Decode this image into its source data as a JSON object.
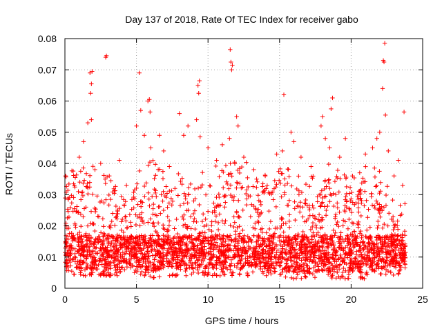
{
  "chart_data": {
    "type": "scatter",
    "title": "Day 137 of 2018, Rate Of TEC Index for receiver gabo",
    "xlabel": "GPS time / hours",
    "ylabel": "ROTI / TECUs",
    "xlim": [
      0,
      25
    ],
    "ylim": [
      0,
      0.08
    ],
    "xticks": [
      0,
      5,
      10,
      15,
      20,
      25
    ],
    "xtick_labels": [
      "0",
      "5",
      "10",
      "15",
      "20",
      "25"
    ],
    "yticks": [
      0,
      0.01,
      0.02,
      0.03,
      0.04,
      0.05,
      0.06,
      0.07,
      0.08
    ],
    "ytick_labels": [
      "0",
      "0.01",
      "0.02",
      "0.03",
      "0.04",
      "0.05",
      "0.06",
      "0.07",
      "0.08"
    ],
    "grid": true,
    "marker": "plus",
    "color": "#ff0000",
    "highlight_points": [
      {
        "x": 0.05,
        "y": 0.036
      },
      {
        "x": 0.3,
        "y": 0.029
      },
      {
        "x": 1.0,
        "y": 0.042
      },
      {
        "x": 1.3,
        "y": 0.047
      },
      {
        "x": 1.6,
        "y": 0.053
      },
      {
        "x": 1.75,
        "y": 0.069
      },
      {
        "x": 1.8,
        "y": 0.0625
      },
      {
        "x": 1.85,
        "y": 0.0655
      },
      {
        "x": 1.9,
        "y": 0.0695
      },
      {
        "x": 1.85,
        "y": 0.054
      },
      {
        "x": 2.1,
        "y": 0.038
      },
      {
        "x": 2.5,
        "y": 0.04
      },
      {
        "x": 2.85,
        "y": 0.074
      },
      {
        "x": 2.9,
        "y": 0.0745
      },
      {
        "x": 3.1,
        "y": 0.036
      },
      {
        "x": 3.8,
        "y": 0.041
      },
      {
        "x": 4.3,
        "y": 0.033
      },
      {
        "x": 5.0,
        "y": 0.052
      },
      {
        "x": 5.2,
        "y": 0.069
      },
      {
        "x": 5.3,
        "y": 0.057
      },
      {
        "x": 5.55,
        "y": 0.049
      },
      {
        "x": 5.8,
        "y": 0.06
      },
      {
        "x": 5.9,
        "y": 0.0605
      },
      {
        "x": 5.95,
        "y": 0.0565
      },
      {
        "x": 6.0,
        "y": 0.045
      },
      {
        "x": 6.6,
        "y": 0.049
      },
      {
        "x": 6.9,
        "y": 0.044
      },
      {
        "x": 7.3,
        "y": 0.039
      },
      {
        "x": 8.0,
        "y": 0.056
      },
      {
        "x": 8.3,
        "y": 0.049
      },
      {
        "x": 8.6,
        "y": 0.052
      },
      {
        "x": 9.2,
        "y": 0.054
      },
      {
        "x": 9.3,
        "y": 0.065
      },
      {
        "x": 9.35,
        "y": 0.0625
      },
      {
        "x": 9.4,
        "y": 0.0665
      },
      {
        "x": 9.45,
        "y": 0.0485
      },
      {
        "x": 10.0,
        "y": 0.045
      },
      {
        "x": 10.6,
        "y": 0.041
      },
      {
        "x": 11.0,
        "y": 0.046
      },
      {
        "x": 11.55,
        "y": 0.0765
      },
      {
        "x": 11.6,
        "y": 0.0725
      },
      {
        "x": 11.65,
        "y": 0.07
      },
      {
        "x": 11.7,
        "y": 0.0715
      },
      {
        "x": 11.5,
        "y": 0.048
      },
      {
        "x": 12.0,
        "y": 0.055
      },
      {
        "x": 12.1,
        "y": 0.052
      },
      {
        "x": 12.5,
        "y": 0.042
      },
      {
        "x": 13.2,
        "y": 0.038
      },
      {
        "x": 14.0,
        "y": 0.036
      },
      {
        "x": 14.8,
        "y": 0.043
      },
      {
        "x": 15.2,
        "y": 0.044
      },
      {
        "x": 15.3,
        "y": 0.062
      },
      {
        "x": 15.8,
        "y": 0.05
      },
      {
        "x": 16.0,
        "y": 0.047
      },
      {
        "x": 16.5,
        "y": 0.042
      },
      {
        "x": 17.2,
        "y": 0.039
      },
      {
        "x": 17.9,
        "y": 0.052
      },
      {
        "x": 18.0,
        "y": 0.055
      },
      {
        "x": 18.2,
        "y": 0.048
      },
      {
        "x": 18.5,
        "y": 0.045
      },
      {
        "x": 18.6,
        "y": 0.0575
      },
      {
        "x": 18.7,
        "y": 0.061
      },
      {
        "x": 19.2,
        "y": 0.042
      },
      {
        "x": 19.6,
        "y": 0.048
      },
      {
        "x": 20.1,
        "y": 0.036
      },
      {
        "x": 20.6,
        "y": 0.037
      },
      {
        "x": 21.0,
        "y": 0.043
      },
      {
        "x": 21.5,
        "y": 0.045
      },
      {
        "x": 21.8,
        "y": 0.048
      },
      {
        "x": 22.0,
        "y": 0.05
      },
      {
        "x": 22.2,
        "y": 0.064
      },
      {
        "x": 22.25,
        "y": 0.073
      },
      {
        "x": 22.3,
        "y": 0.0725
      },
      {
        "x": 22.35,
        "y": 0.0785
      },
      {
        "x": 22.4,
        "y": 0.0555
      },
      {
        "x": 22.6,
        "y": 0.044
      },
      {
        "x": 23.0,
        "y": 0.036
      },
      {
        "x": 23.3,
        "y": 0.041
      },
      {
        "x": 23.7,
        "y": 0.0565
      },
      {
        "x": 23.6,
        "y": 0.033
      }
    ],
    "density_envelope": {
      "hours": [
        0,
        1,
        2,
        3,
        4,
        5,
        6,
        7,
        8,
        9,
        10,
        11,
        12,
        13,
        14,
        15,
        16,
        17,
        18,
        19,
        20,
        21,
        22,
        23,
        23.8
      ],
      "dense_upper": [
        0.027,
        0.031,
        0.03,
        0.027,
        0.022,
        0.026,
        0.032,
        0.03,
        0.026,
        0.027,
        0.026,
        0.029,
        0.032,
        0.029,
        0.03,
        0.031,
        0.027,
        0.025,
        0.029,
        0.031,
        0.026,
        0.03,
        0.027,
        0.021,
        0.018
      ],
      "sparse_upper": [
        0.036,
        0.04,
        0.04,
        0.036,
        0.032,
        0.038,
        0.044,
        0.041,
        0.037,
        0.038,
        0.037,
        0.041,
        0.043,
        0.039,
        0.039,
        0.041,
        0.037,
        0.035,
        0.04,
        0.042,
        0.037,
        0.04,
        0.038,
        0.031,
        0.028
      ],
      "floor": [
        0.005,
        0.004,
        0.004,
        0.004,
        0.004,
        0.005,
        0.003,
        0.004,
        0.004,
        0.004,
        0.004,
        0.004,
        0.004,
        0.004,
        0.004,
        0.004,
        0.003,
        0.003,
        0.003,
        0.003,
        0.003,
        0.003,
        0.004,
        0.004,
        0.005
      ]
    }
  }
}
